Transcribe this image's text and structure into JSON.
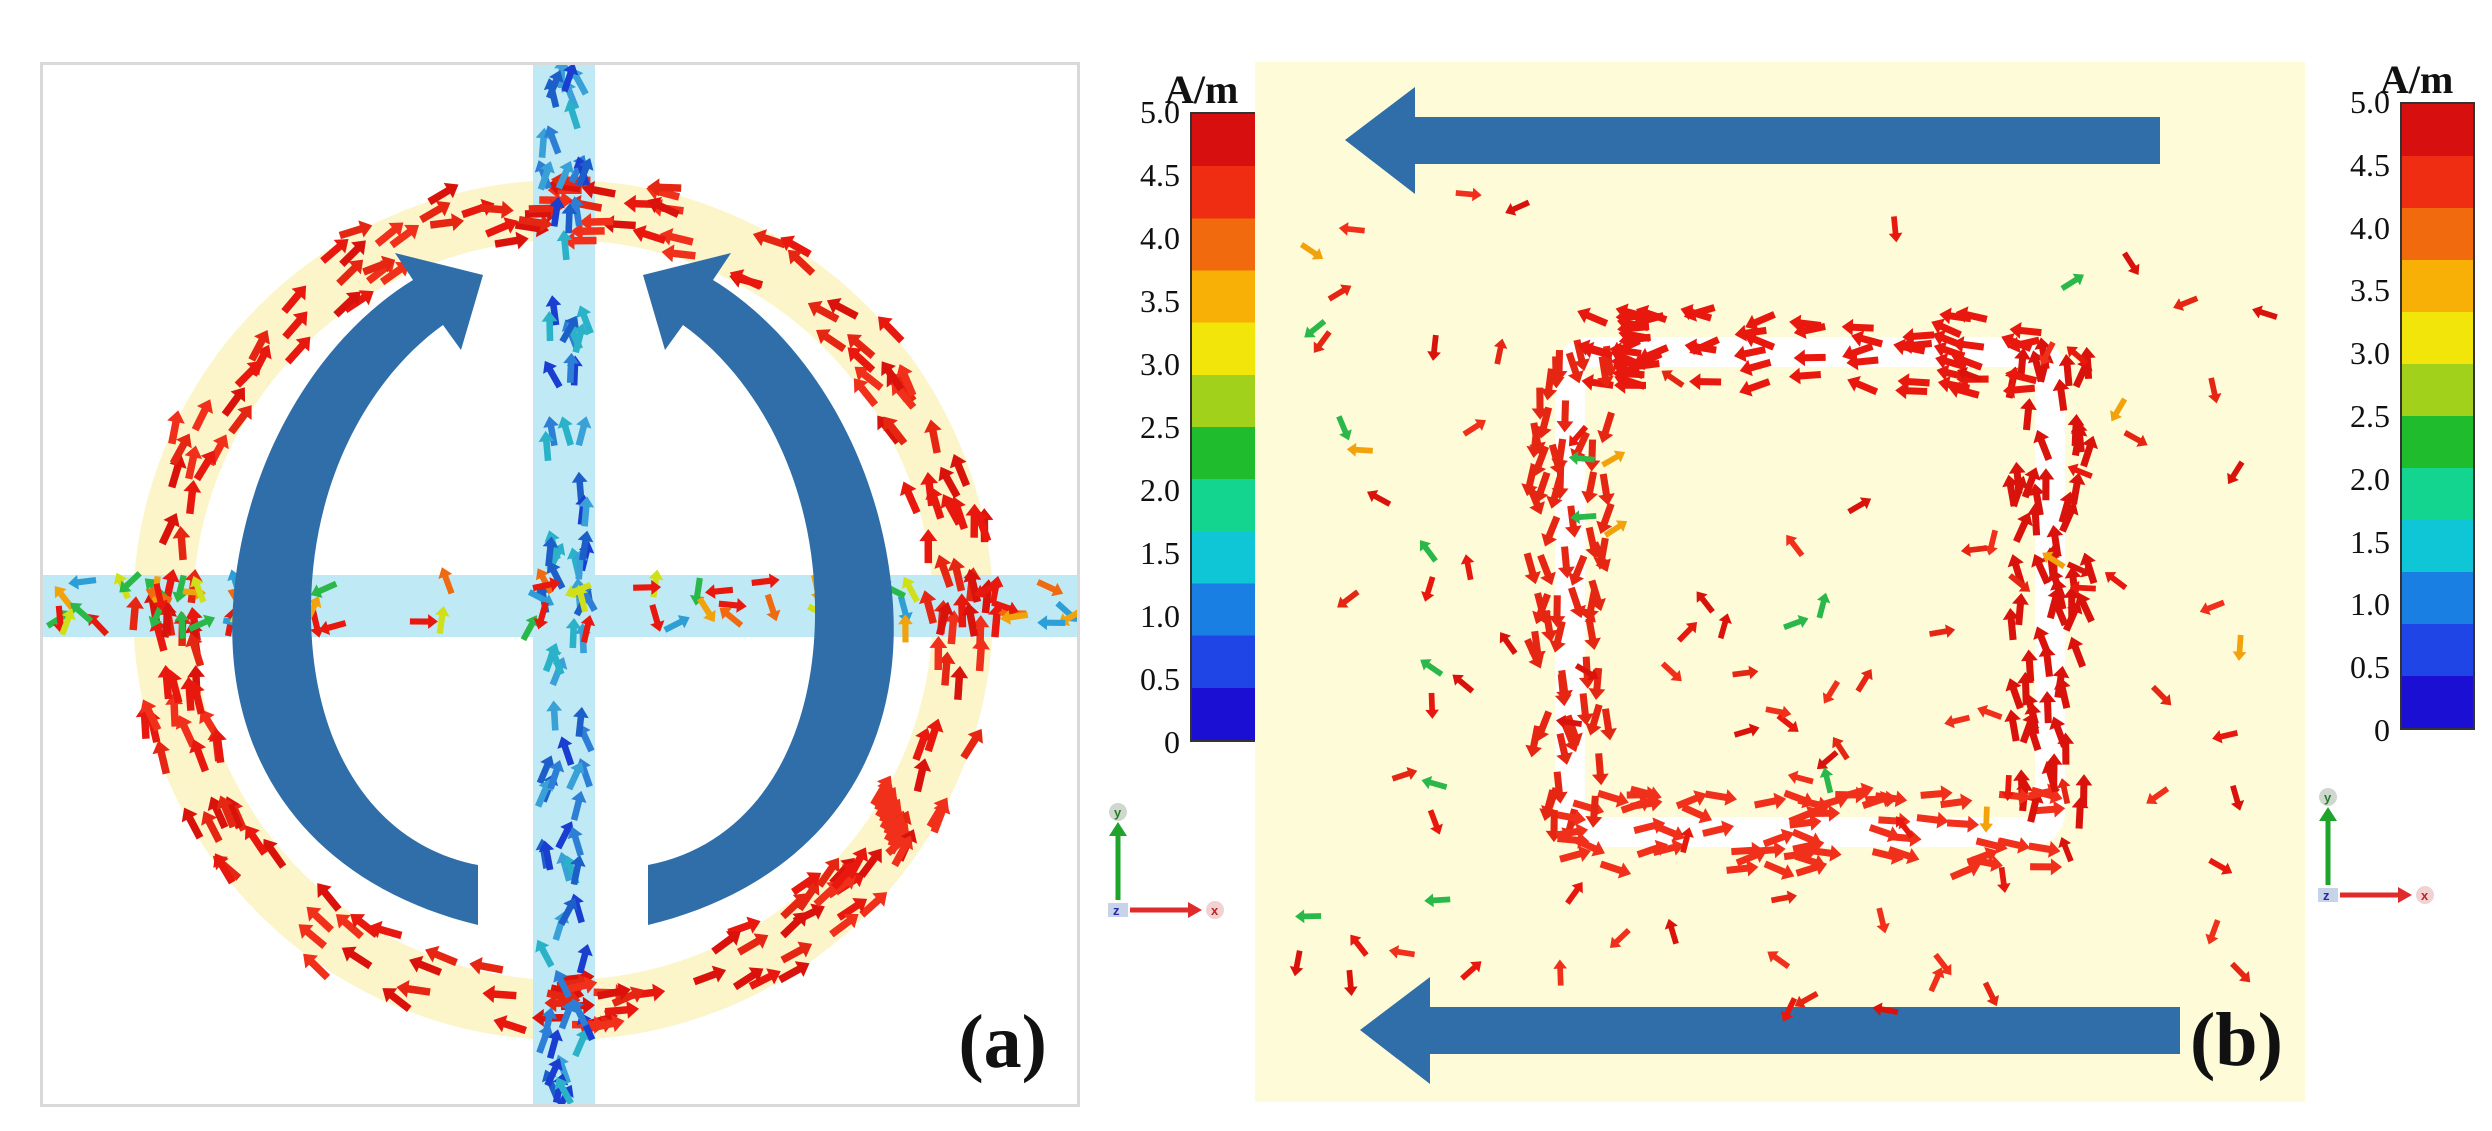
{
  "panels": [
    {
      "id": "a",
      "label": "(a)"
    },
    {
      "id": "b",
      "label": "(b)"
    }
  ],
  "colorbar": {
    "unit": "A/m",
    "ticks": [
      "5.0",
      "4.5",
      "4.0",
      "3.5",
      "3.0",
      "2.5",
      "2.0",
      "1.5",
      "1.0",
      "0.5",
      "0"
    ],
    "colors": [
      "#d80f0f",
      "#ee2d12",
      "#f26a0e",
      "#f9b006",
      "#f1e50a",
      "#a2d11c",
      "#1fbd2e",
      "#14d58f",
      "#0fc6d6",
      "#1a7fe2",
      "#1f45e6",
      "#1a0fd3"
    ]
  },
  "axes": {
    "y": "y",
    "z": "z",
    "x": "x"
  },
  "palette": {
    "arrow_red": "#e8180f",
    "arrow_blue": "#2d7fd6",
    "flow_arrow": "#2f6ea8",
    "panel_b_bg": "#fdfbd8",
    "strip": "#bfeaf5"
  }
}
